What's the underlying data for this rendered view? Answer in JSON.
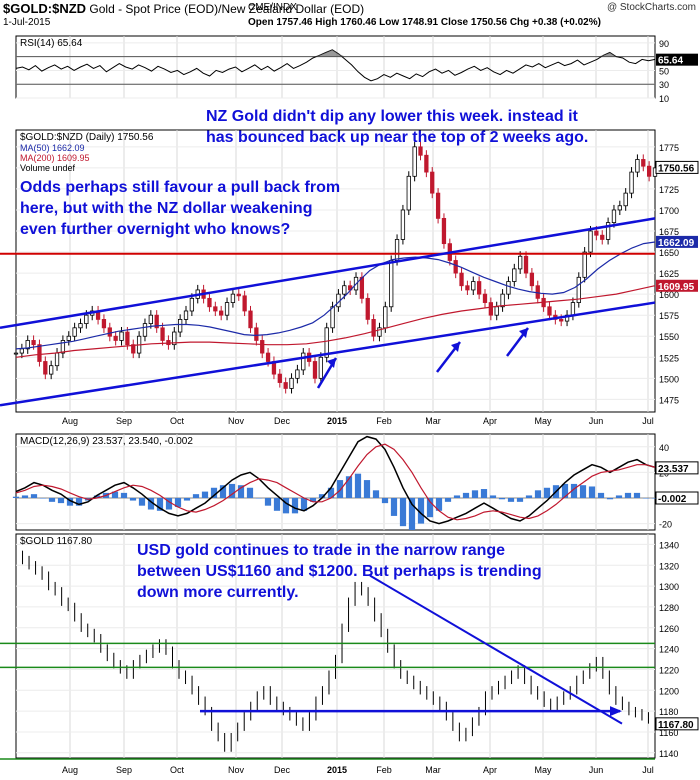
{
  "header": {
    "symbol": "$GOLD:$NZD",
    "description": "Gold - Spot Price (EOD)/New Zealand Dollar (EOD)",
    "exchange": "CME/INDX",
    "date": "1-Jul-2015",
    "ohlc": "Open 1757.46  High 1760.46  Low 1748.91  Close 1750.56  Chg +0.38 (+0.02%)",
    "brand": "@ StockCharts.com"
  },
  "months": [
    "Aug",
    "Sep",
    "Oct",
    "Nov",
    "Dec",
    "2015",
    "Feb",
    "Mar",
    "Apr",
    "May",
    "Jun",
    "Jul"
  ],
  "annotations": {
    "nz_note": "NZ Gold didn't dip any lower this week. instead it\nhas bounced back up near the top of 2 weeks ago.",
    "odds_note": "Odds perhaps still favour a pull back from\nhere, but with the NZ dollar weakening\neven further overnight who knows?",
    "usd_note": "USD gold continues to trade in the narrow range\nbetween US$1160 and $1200. But perhaps is trending\ndown more currently."
  },
  "colors": {
    "price_up": "#000000",
    "price_down": "#c0182e",
    "ma50": "#1c2aa8",
    "ma200": "#c0182e",
    "channel": "#1010d8",
    "hline_red": "#d00000",
    "hline_green": "#1a8a1a",
    "annotation": "#1010d8",
    "macd_hist": "#3a7ad6",
    "rsi_fill": "#555555",
    "badge_black": "#000000",
    "badge_blue": "#1c2aa8",
    "badge_red": "#c0182e"
  },
  "chart_data": [
    {
      "type": "line",
      "name": "rsi_panel",
      "title": "RSI(14) 65.64",
      "ylim": [
        10,
        100
      ],
      "ticks": [
        90,
        70,
        50,
        30,
        10
      ],
      "badge": "65.64",
      "reference_lines": [
        70,
        30
      ],
      "y": [
        53,
        55,
        51,
        57,
        49,
        54,
        58,
        52,
        56,
        50,
        55,
        59,
        53,
        57,
        48,
        54,
        60,
        55,
        52,
        58,
        54,
        49,
        56,
        52,
        47,
        50,
        44,
        48,
        53,
        46,
        42,
        50,
        47,
        52,
        55,
        48,
        53,
        58,
        51,
        56,
        49,
        54,
        60,
        53,
        57,
        62,
        68,
        72,
        76,
        80,
        74,
        66,
        58,
        48,
        40,
        35,
        38,
        44,
        40,
        46,
        42,
        38,
        45,
        41,
        48,
        52,
        46,
        50,
        43,
        47,
        52,
        56,
        50,
        54,
        48,
        44,
        50,
        46,
        52,
        58,
        55,
        60,
        54,
        58,
        62,
        57,
        60,
        65,
        58,
        62,
        66,
        72,
        76,
        70,
        68,
        62,
        60,
        66,
        64,
        66
      ]
    },
    {
      "type": "candlestick",
      "name": "gold_nzd_panel",
      "title": "$GOLD:$NZD (Daily) 1750.56",
      "ylim": [
        1460,
        1795
      ],
      "ticks": [
        1775,
        1750,
        1725,
        1700,
        1675,
        1650,
        1625,
        1600,
        1575,
        1550,
        1525,
        1500,
        1475
      ],
      "legend": [
        "MA(50) 1662.09",
        "MA(200) 1609.95",
        "Volume undef"
      ],
      "badges": [
        "1750.56",
        "1662.09",
        "1609.95"
      ],
      "price": [
        1530,
        1535,
        1545,
        1540,
        1520,
        1505,
        1515,
        1530,
        1545,
        1550,
        1560,
        1565,
        1575,
        1580,
        1570,
        1560,
        1550,
        1545,
        1555,
        1540,
        1530,
        1550,
        1565,
        1575,
        1560,
        1545,
        1540,
        1555,
        1570,
        1580,
        1595,
        1605,
        1595,
        1585,
        1580,
        1575,
        1590,
        1600,
        1598,
        1580,
        1560,
        1545,
        1530,
        1520,
        1505,
        1495,
        1488,
        1500,
        1510,
        1530,
        1520,
        1500,
        1525,
        1560,
        1585,
        1600,
        1610,
        1605,
        1620,
        1595,
        1570,
        1550,
        1560,
        1585,
        1640,
        1665,
        1700,
        1740,
        1775,
        1765,
        1745,
        1720,
        1690,
        1660,
        1640,
        1625,
        1610,
        1605,
        1615,
        1600,
        1590,
        1575,
        1585,
        1600,
        1615,
        1630,
        1645,
        1625,
        1610,
        1595,
        1585,
        1575,
        1570,
        1568,
        1575,
        1590,
        1620,
        1650,
        1675,
        1670,
        1665,
        1685,
        1700,
        1705,
        1720,
        1745,
        1760,
        1752,
        1740,
        1750
      ],
      "ma50": [
        1535,
        1536,
        1538,
        1540,
        1542,
        1544,
        1547,
        1550,
        1553,
        1556,
        1558,
        1560,
        1562,
        1563,
        1564,
        1564,
        1563,
        1561,
        1558,
        1555,
        1552,
        1551,
        1552,
        1554,
        1557,
        1561,
        1566,
        1575,
        1587,
        1600,
        1615,
        1628,
        1636,
        1641,
        1643,
        1644,
        1643,
        1641,
        1637,
        1632,
        1626,
        1620,
        1615,
        1610,
        1606,
        1603,
        1601,
        1600,
        1602,
        1608,
        1618,
        1630,
        1640,
        1648,
        1655,
        1660,
        1662
      ],
      "ma200": [
        1525,
        1528,
        1530,
        1533,
        1535,
        1537,
        1539,
        1541,
        1542,
        1543,
        1543,
        1542,
        1541,
        1540,
        1540,
        1541,
        1544,
        1548,
        1553,
        1559,
        1565,
        1571,
        1576,
        1580,
        1583,
        1586,
        1588,
        1590,
        1592,
        1594,
        1597,
        1600,
        1605,
        1610
      ],
      "channel": {
        "upper": [
          1560,
          1690
        ],
        "lower": [
          1468,
          1590
        ]
      },
      "hlines": [
        1648
      ]
    },
    {
      "type": "line",
      "name": "macd_panel",
      "title": "MACD(12,26,9) 23.537, 23.540, -0.002",
      "ylim": [
        -25,
        50
      ],
      "ticks": [
        40,
        20,
        0,
        -20
      ],
      "badges": [
        "23.537",
        "-0.002"
      ],
      "macd": [
        5,
        8,
        12,
        10,
        6,
        3,
        -2,
        -5,
        -3,
        2,
        6,
        10,
        12,
        8,
        3,
        -3,
        -8,
        -12,
        -14,
        -12,
        -8,
        -4,
        2,
        8,
        14,
        18,
        20,
        15,
        8,
        2,
        -4,
        -8,
        -10,
        -6,
        0,
        8,
        20,
        32,
        44,
        48,
        46,
        38,
        24,
        8,
        -5,
        -12,
        -18,
        -20,
        -18,
        -15,
        -12,
        -8,
        -4,
        -8,
        -12,
        -16,
        -18,
        -14,
        -8,
        -2,
        5,
        12,
        18,
        22,
        26,
        24,
        20,
        24,
        28,
        30,
        26,
        24
      ],
      "signal": [
        4,
        6,
        9,
        10,
        9,
        7,
        4,
        1,
        -1,
        0,
        2,
        5,
        8,
        10,
        9,
        6,
        2,
        -3,
        -7,
        -10,
        -11,
        -9,
        -6,
        -2,
        3,
        8,
        12,
        15,
        14,
        12,
        8,
        4,
        0,
        -3,
        -3,
        0,
        6,
        15,
        25,
        34,
        40,
        42,
        38,
        30,
        20,
        8,
        -3,
        -10,
        -15,
        -17,
        -16,
        -14,
        -11,
        -10,
        -11,
        -13,
        -15,
        -16,
        -14,
        -10,
        -5,
        1,
        7,
        12,
        17,
        20,
        21,
        22,
        24,
        26,
        26,
        24
      ]
    },
    {
      "type": "line",
      "name": "usd_gold_panel",
      "title": "$GOLD 1167.80",
      "ylim": [
        1135,
        1350
      ],
      "ticks": [
        1340,
        1320,
        1300,
        1280,
        1260,
        1240,
        1220,
        1200,
        1180,
        1160,
        1140
      ],
      "badge": "1167.80",
      "y": [
        1330,
        1325,
        1320,
        1315,
        1310,
        1300,
        1295,
        1285,
        1280,
        1270,
        1260,
        1255,
        1250,
        1240,
        1232,
        1225,
        1220,
        1215,
        1225,
        1230,
        1235,
        1240,
        1245,
        1238,
        1225,
        1215,
        1210,
        1200,
        1190,
        1180,
        1165,
        1155,
        1145,
        1155,
        1165,
        1175,
        1185,
        1195,
        1200,
        1190,
        1185,
        1180,
        1175,
        1170,
        1165,
        1175,
        1190,
        1200,
        1215,
        1230,
        1260,
        1285,
        1300,
        1295,
        1285,
        1270,
        1255,
        1240,
        1225,
        1215,
        1210,
        1205,
        1200,
        1195,
        1190,
        1185,
        1175,
        1165,
        1155,
        1160,
        1170,
        1180,
        1195,
        1200,
        1205,
        1210,
        1215,
        1220,
        1210,
        1200,
        1195,
        1188,
        1185,
        1190,
        1195,
        1200,
        1210,
        1215,
        1222,
        1228,
        1215,
        1200,
        1190,
        1185,
        1180,
        1178,
        1175,
        1172,
        1168
      ],
      "hlines_green": [
        1245,
        1222,
        1134
      ],
      "hline_blue": 1180,
      "trend": [
        1310,
        1168
      ]
    }
  ]
}
